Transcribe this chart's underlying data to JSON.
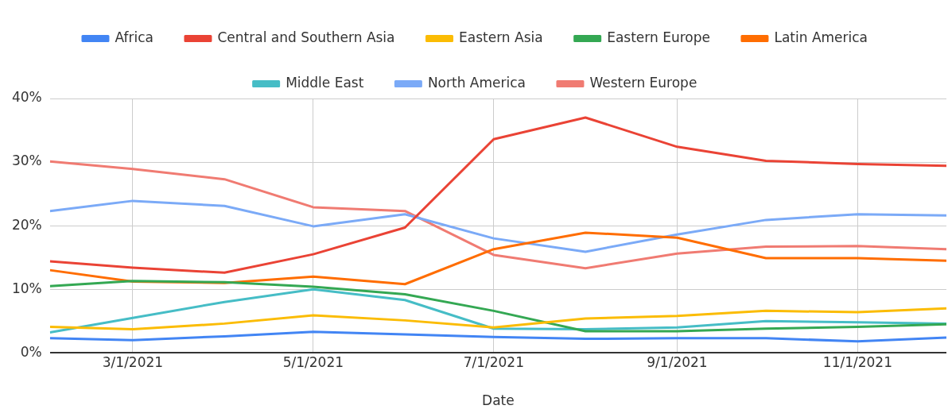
{
  "chart_data": {
    "type": "line",
    "xlabel": "Date",
    "x": [
      "2021-02-01",
      "2021-03-01",
      "2021-04-01",
      "2021-05-01",
      "2021-06-01",
      "2021-07-01",
      "2021-08-01",
      "2021-09-01",
      "2021-10-01",
      "2021-11-01",
      "2021-12-01"
    ],
    "xlim": [
      "2021-02-01",
      "2021-12-01"
    ],
    "xticks": [
      {
        "value": "2021-03-01",
        "label": "3/1/2021"
      },
      {
        "value": "2021-05-01",
        "label": "5/1/2021"
      },
      {
        "value": "2021-07-01",
        "label": "7/1/2021"
      },
      {
        "value": "2021-09-01",
        "label": "9/1/2021"
      },
      {
        "value": "2021-11-01",
        "label": "11/1/2021"
      }
    ],
    "ylim": [
      0,
      40
    ],
    "yticks": [
      {
        "value": 0,
        "label": "0%"
      },
      {
        "value": 10,
        "label": "10%"
      },
      {
        "value": 20,
        "label": "20%"
      },
      {
        "value": 30,
        "label": "30%"
      },
      {
        "value": 40,
        "label": "40%"
      }
    ],
    "grid": true,
    "legend": "top",
    "marker": "none",
    "line_style": "solid",
    "series": [
      {
        "name": "Africa",
        "color": "#4285f4",
        "values": [
          2.3,
          2.0,
          2.6,
          3.3,
          2.9,
          2.5,
          2.2,
          2.3,
          2.3,
          1.8,
          2.4
        ]
      },
      {
        "name": "Central and Southern Asia",
        "color": "#ea4335",
        "values": [
          14.4,
          13.4,
          12.6,
          15.5,
          19.7,
          33.6,
          37.0,
          32.4,
          30.2,
          29.7,
          29.4
        ]
      },
      {
        "name": "Eastern Asia",
        "color": "#fbbc04",
        "values": [
          4.1,
          3.7,
          4.6,
          5.9,
          5.1,
          4.0,
          5.4,
          5.8,
          6.6,
          6.4,
          7.0
        ]
      },
      {
        "name": "Eastern Europe",
        "color": "#34a853",
        "values": [
          10.5,
          11.3,
          11.1,
          10.4,
          9.2,
          6.6,
          3.4,
          3.4,
          3.8,
          4.1,
          4.5
        ]
      },
      {
        "name": "Latin America",
        "color": "#ff6d01",
        "values": [
          13.0,
          11.2,
          11.0,
          12.0,
          10.8,
          16.3,
          18.9,
          18.1,
          14.9,
          14.9,
          14.5
        ]
      },
      {
        "name": "Middle East",
        "color": "#46bdc6",
        "values": [
          3.2,
          5.5,
          8.0,
          10.0,
          8.3,
          3.8,
          3.7,
          4.0,
          5.0,
          4.8,
          4.6
        ]
      },
      {
        "name": "North America",
        "color": "#7baaf7",
        "values": [
          22.3,
          23.9,
          23.1,
          19.9,
          21.8,
          18.0,
          15.9,
          18.6,
          20.9,
          21.8,
          21.6
        ]
      },
      {
        "name": "Western Europe",
        "color": "#f07b72",
        "values": [
          30.1,
          28.9,
          27.3,
          22.9,
          22.3,
          15.4,
          13.3,
          15.6,
          16.7,
          16.8,
          16.3
        ]
      }
    ]
  }
}
